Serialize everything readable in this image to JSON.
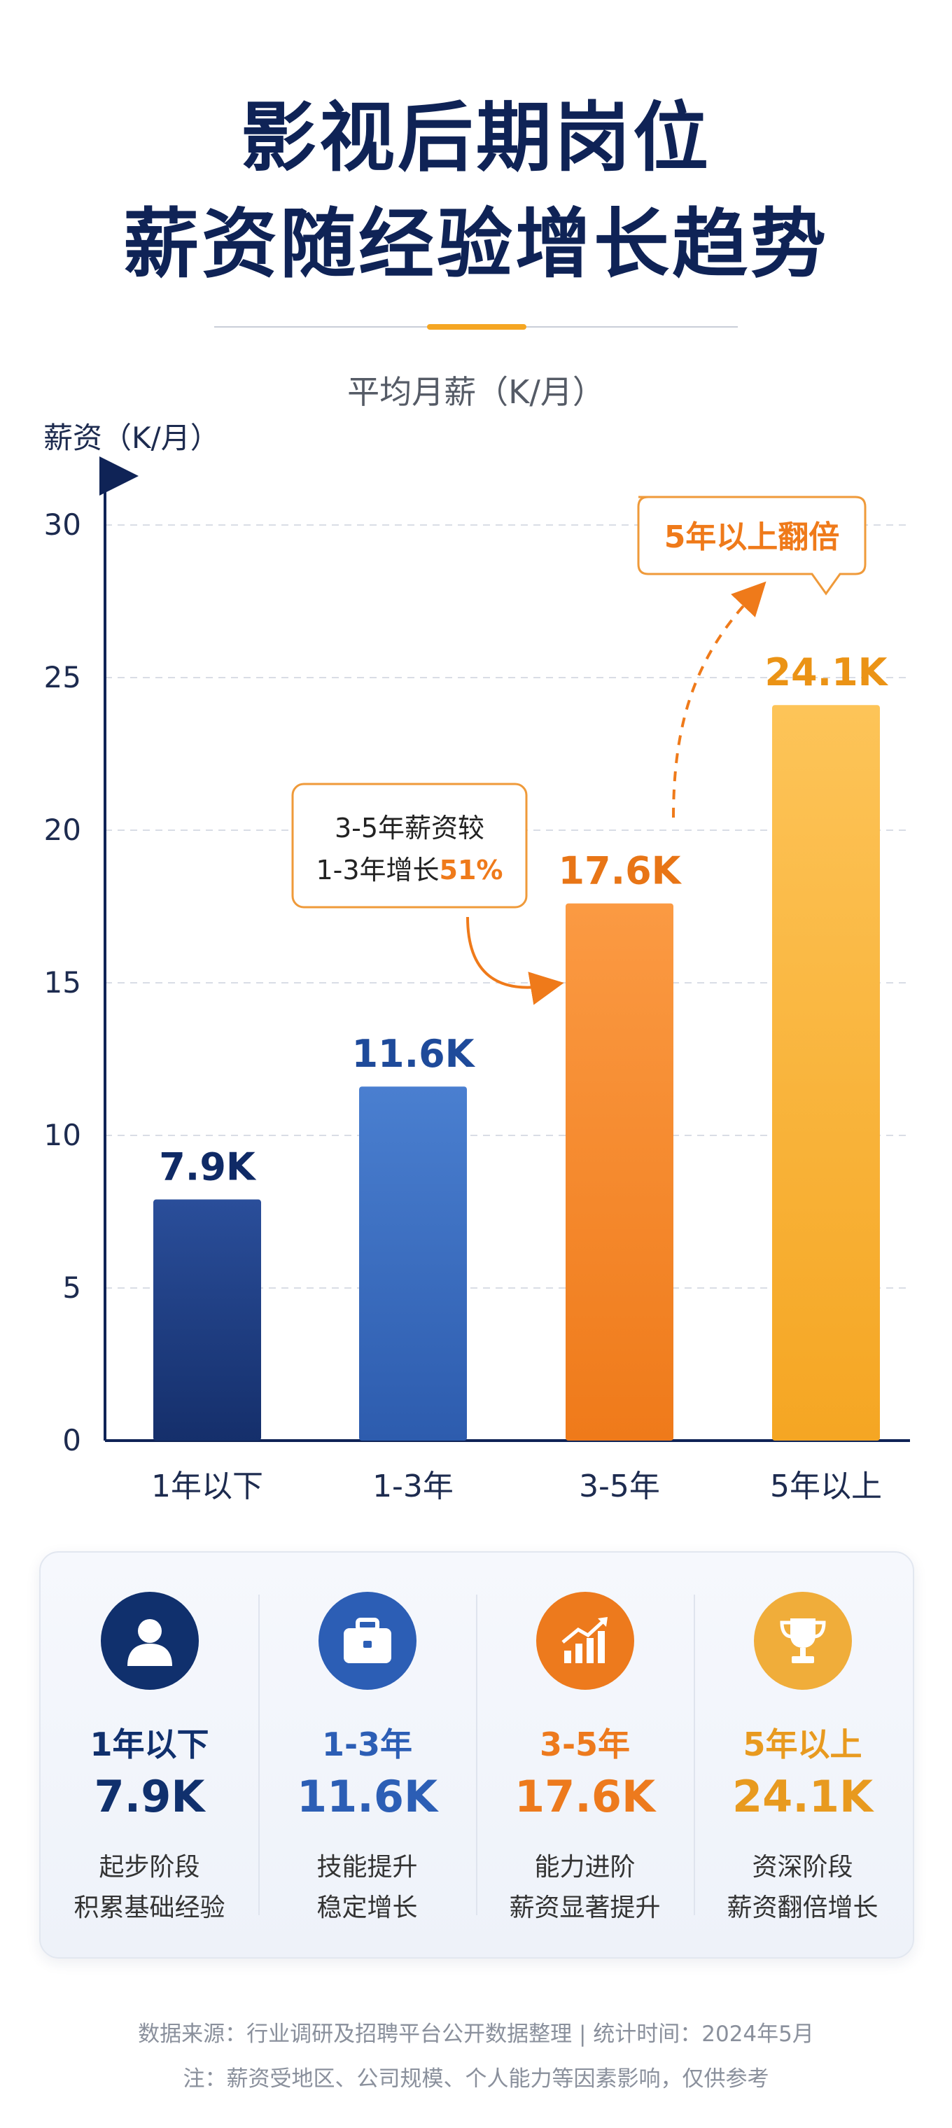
{
  "header": {
    "title_line1": "影视后期岗位",
    "title_line2": "薪资随经验增长趋势",
    "subtitle": "平均月薪（K/月）"
  },
  "chart_data": {
    "type": "bar",
    "ylabel": "薪资（K/月）",
    "ylim": [
      0,
      30
    ],
    "yticks": [
      0,
      5,
      10,
      15,
      20,
      25,
      30
    ],
    "grid": true,
    "categories": [
      "1年以下",
      "1-3年",
      "3-5年",
      "5年以上"
    ],
    "values": [
      7.9,
      11.6,
      17.6,
      24.1
    ],
    "value_labels": [
      "7.9K",
      "11.6K",
      "17.6K",
      "24.1K"
    ],
    "colors": [
      [
        "#2a4e9a",
        "#152f6b"
      ],
      [
        "#4a7fd0",
        "#2d5cae"
      ],
      [
        "#fb9a43",
        "#ef7a1a"
      ],
      [
        "#fdc458",
        "#f5a623"
      ]
    ],
    "label_colors": [
      "#0f2a66",
      "#1e4a9a",
      "#e87516",
      "#eb9315"
    ],
    "annotations": [
      {
        "line1": "3-5年薪资较",
        "line2_prefix": "1-3年增长",
        "line2_highlight": "51%"
      },
      {
        "text": "5年以上翻倍"
      }
    ]
  },
  "summary": [
    {
      "range": "1年以下",
      "value": "7.9K",
      "desc1": "起步阶段",
      "desc2": "积累基础经验",
      "icon": "user-icon",
      "color": "#10306d"
    },
    {
      "range": "1-3年",
      "value": "11.6K",
      "desc1": "技能提升",
      "desc2": "稳定增长",
      "icon": "briefcase-icon",
      "color": "#2c5eb5"
    },
    {
      "range": "3-5年",
      "value": "17.6K",
      "desc1": "能力进阶",
      "desc2": "薪资显著提升",
      "icon": "growth-chart-icon",
      "color": "#ed7a1d"
    },
    {
      "range": "5年以上",
      "value": "24.1K",
      "desc1": "资深阶段",
      "desc2": "薪资翻倍增长",
      "icon": "trophy-icon",
      "color": "#e89a1f"
    }
  ],
  "footer": {
    "line1": "数据来源：行业调研及招聘平台公开数据整理  |  统计时间：2024年5月",
    "line2": "注：薪资受地区、公司规模、个人能力等因素影响，仅供参考"
  }
}
